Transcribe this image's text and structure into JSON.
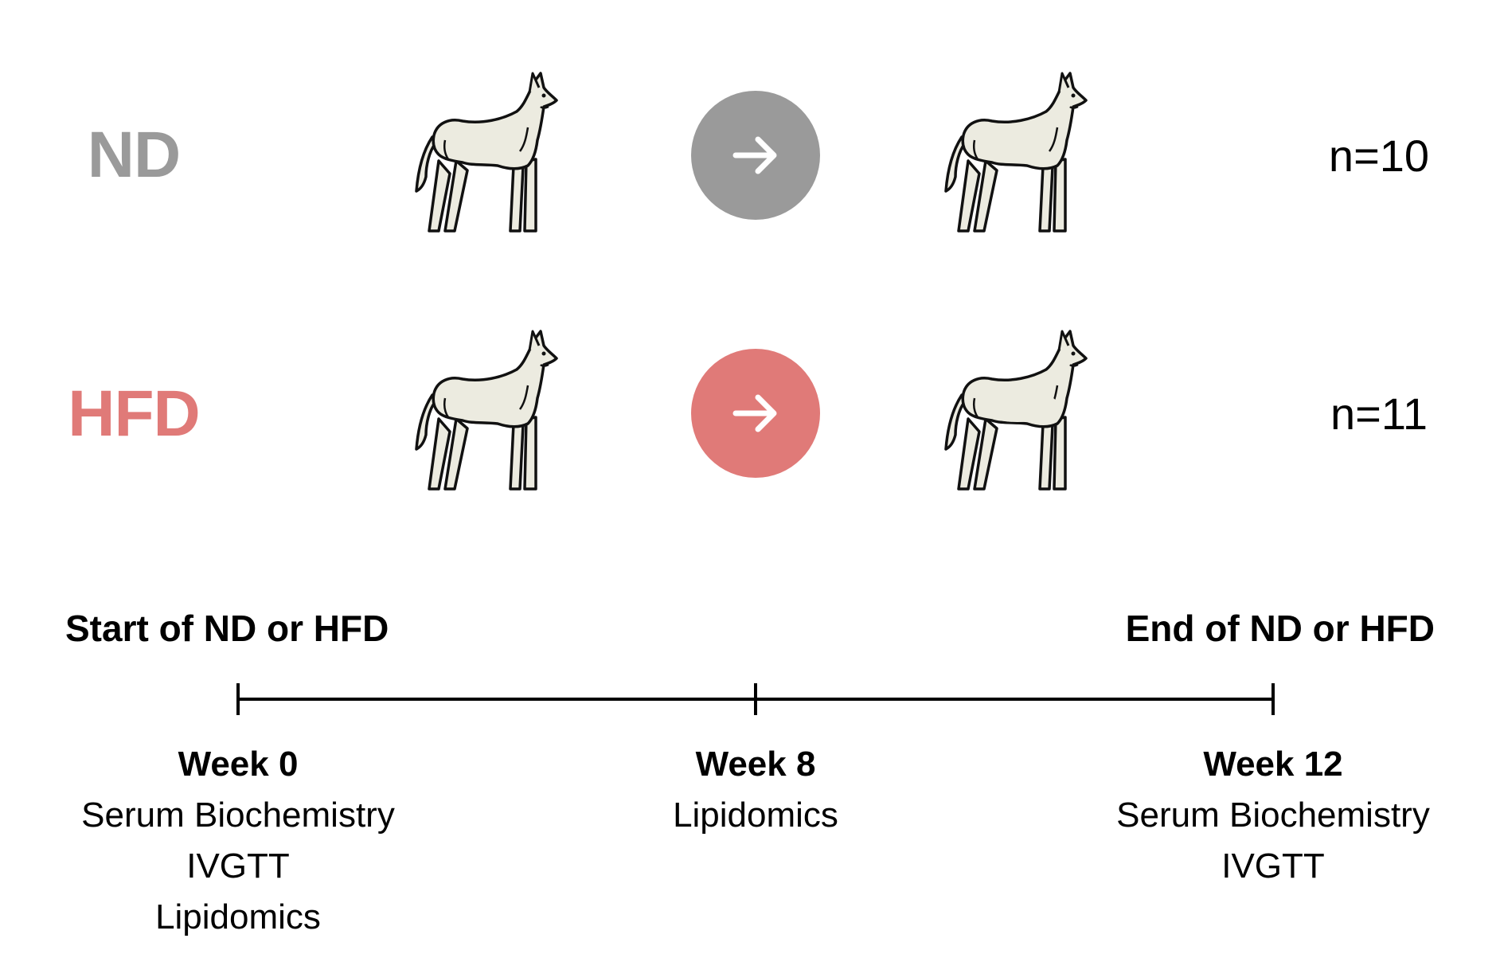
{
  "colors": {
    "nd": "#9a9a9a",
    "hfd": "#e07a78",
    "dog_fill": "#ecebe0",
    "dog_stroke": "#111111"
  },
  "groups": [
    {
      "label": "ND",
      "n": "n=10"
    },
    {
      "label": "HFD",
      "n": "n=11"
    }
  ],
  "phases": {
    "start": "Start of ND or HFD",
    "end": "End of ND or HFD"
  },
  "timepoints": [
    {
      "title": "Week 0",
      "items": [
        "Serum Biochemistry",
        "IVGTT",
        "Lipidomics"
      ]
    },
    {
      "title": "Week 8",
      "items": [
        "Lipidomics"
      ]
    },
    {
      "title": "Week 12",
      "items": [
        "Serum Biochemistry",
        "IVGTT"
      ]
    }
  ],
  "icons": {
    "dog": "dog-icon",
    "arrow": "arrow-right-icon"
  }
}
